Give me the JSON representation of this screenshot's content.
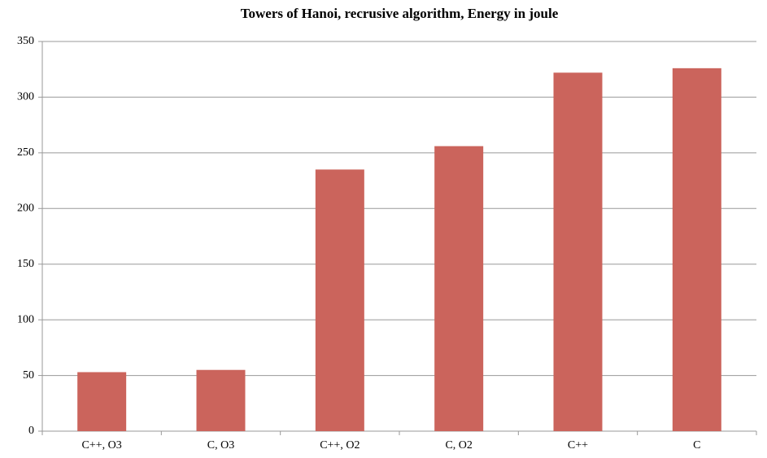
{
  "chart_data": {
    "type": "bar",
    "title": "Towers of Hanoi, recrusive algorithm, Energy in joule",
    "categories": [
      "C++, O3",
      "C, O3",
      "C++, O2",
      "C, O2",
      "C++",
      "C"
    ],
    "values": [
      53,
      55,
      235,
      256,
      322,
      326
    ],
    "color": "#cb645c",
    "ylim": [
      0,
      350
    ],
    "yticks": [
      0,
      50,
      100,
      150,
      200,
      250,
      300,
      350
    ],
    "grid": true
  }
}
